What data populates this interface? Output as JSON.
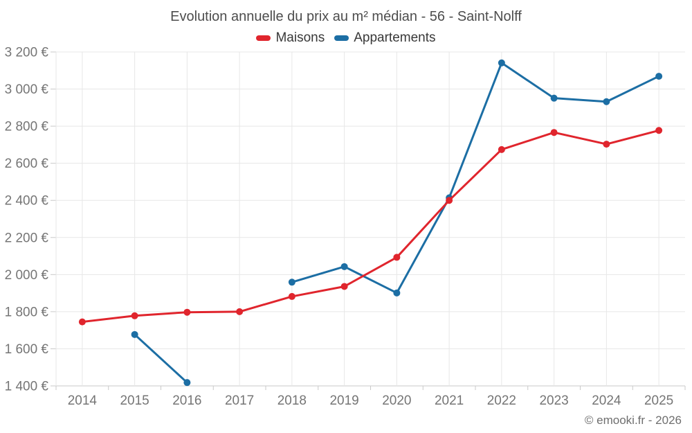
{
  "chart_data": {
    "type": "line",
    "title": "Evolution annuelle du prix au m² médian - 56 - Saint-Nolff",
    "footer": "© emooki.fr - 2026",
    "categories": [
      "2014",
      "2015",
      "2016",
      "2017",
      "2018",
      "2019",
      "2020",
      "2021",
      "2022",
      "2023",
      "2024",
      "2025"
    ],
    "series": [
      {
        "name": "Maisons",
        "color": "#e0252d",
        "values": [
          1745,
          1778,
          1797,
          1800,
          1882,
          1936,
          2093,
          2400,
          2674,
          2766,
          2703,
          2777
        ]
      },
      {
        "name": "Appartements",
        "color": "#1c6ea4",
        "values": [
          null,
          1677,
          1418,
          null,
          1959,
          2043,
          1901,
          2414,
          3141,
          2951,
          2932,
          3069
        ]
      }
    ],
    "ylim": [
      1400,
      3200
    ],
    "ytick_step": 200,
    "yticks": [
      {
        "value": 1400,
        "label": "1 400 €"
      },
      {
        "value": 1600,
        "label": "1 600 €"
      },
      {
        "value": 1800,
        "label": "1 800 €"
      },
      {
        "value": 2000,
        "label": "2 000 €"
      },
      {
        "value": 2200,
        "label": "2 200 €"
      },
      {
        "value": 2400,
        "label": "2 400 €"
      },
      {
        "value": 2600,
        "label": "2 600 €"
      },
      {
        "value": 2800,
        "label": "2 800 €"
      },
      {
        "value": 3000,
        "label": "3 000 €"
      },
      {
        "value": 3200,
        "label": "3 200 €"
      }
    ],
    "xlabel": "",
    "ylabel": "",
    "grid": true,
    "legend_position": "top",
    "colors": {
      "grid_line": "#e7e7e7",
      "axis_line": "#c9c9c9",
      "tick_label": "#757575",
      "title_text": "#4d4d4d",
      "legend_text": "#383838",
      "footer_text": "#6e6e6e"
    }
  }
}
